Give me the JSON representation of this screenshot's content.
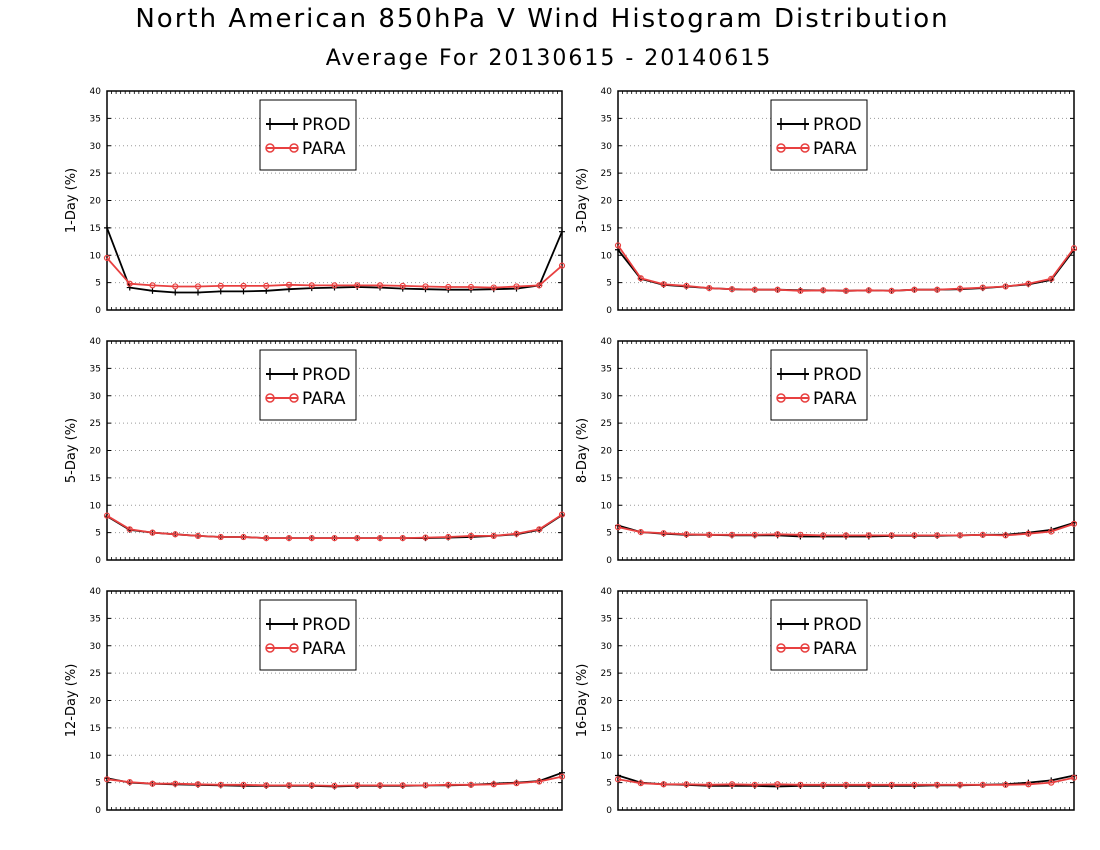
{
  "title": "North American 850hPa V Wind Histogram Distribution",
  "subtitle": "Average For 20130615 - 20140615",
  "colors": {
    "PROD": "#000000",
    "PARA": "#e84040"
  },
  "chart_data": [
    {
      "type": "line",
      "ylabel": "1-Day (%)",
      "ylim": [
        0,
        40
      ],
      "yticks": [
        0,
        5,
        10,
        15,
        20,
        25,
        30,
        35,
        40
      ],
      "grid": true,
      "legend": "top-center",
      "series": [
        {
          "name": "PROD",
          "values": [
            15,
            4.1,
            3.5,
            3.2,
            3.2,
            3.4,
            3.4,
            3.5,
            3.8,
            4.0,
            4.1,
            4.2,
            4.1,
            3.9,
            3.8,
            3.7,
            3.7,
            3.8,
            3.9,
            4.5,
            14.3
          ]
        },
        {
          "name": "PARA",
          "values": [
            9.5,
            4.8,
            4.5,
            4.3,
            4.3,
            4.4,
            4.4,
            4.4,
            4.6,
            4.5,
            4.5,
            4.5,
            4.5,
            4.4,
            4.3,
            4.2,
            4.2,
            4.1,
            4.3,
            4.5,
            8.1
          ]
        }
      ]
    },
    {
      "type": "line",
      "ylabel": "3-Day (%)",
      "ylim": [
        0,
        40
      ],
      "yticks": [
        0,
        5,
        10,
        15,
        20,
        25,
        30,
        35,
        40
      ],
      "grid": true,
      "legend": "top-center",
      "series": [
        {
          "name": "PROD",
          "values": [
            11.0,
            5.7,
            4.6,
            4.3,
            4.0,
            3.8,
            3.7,
            3.7,
            3.6,
            3.6,
            3.5,
            3.6,
            3.5,
            3.7,
            3.7,
            3.8,
            4.0,
            4.3,
            4.7,
            5.5,
            11.0
          ]
        },
        {
          "name": "PARA",
          "values": [
            11.8,
            5.8,
            4.7,
            4.4,
            4.0,
            3.8,
            3.7,
            3.7,
            3.5,
            3.6,
            3.5,
            3.6,
            3.5,
            3.7,
            3.7,
            3.9,
            4.1,
            4.3,
            4.8,
            5.7,
            11.3
          ]
        }
      ]
    },
    {
      "type": "line",
      "ylabel": "5-Day (%)",
      "ylim": [
        0,
        40
      ],
      "yticks": [
        0,
        5,
        10,
        15,
        20,
        25,
        30,
        35,
        40
      ],
      "grid": true,
      "legend": "top-center",
      "series": [
        {
          "name": "PROD",
          "values": [
            8.0,
            5.5,
            5.0,
            4.7,
            4.4,
            4.2,
            4.2,
            4.0,
            4.0,
            4.0,
            4.0,
            4.0,
            4.0,
            4.0,
            4.0,
            4.1,
            4.2,
            4.4,
            4.7,
            5.5,
            8.2
          ]
        },
        {
          "name": "PARA",
          "values": [
            8.1,
            5.6,
            5.0,
            4.7,
            4.4,
            4.2,
            4.2,
            4.0,
            4.0,
            4.0,
            4.0,
            4.0,
            4.0,
            4.0,
            4.1,
            4.2,
            4.4,
            4.4,
            4.8,
            5.6,
            8.3
          ]
        }
      ]
    },
    {
      "type": "line",
      "ylabel": "8-Day (%)",
      "ylim": [
        0,
        40
      ],
      "yticks": [
        0,
        5,
        10,
        15,
        20,
        25,
        30,
        35,
        40
      ],
      "grid": true,
      "legend": "top-center",
      "series": [
        {
          "name": "PROD",
          "values": [
            6.3,
            5.1,
            4.8,
            4.6,
            4.6,
            4.5,
            4.5,
            4.5,
            4.3,
            4.3,
            4.3,
            4.3,
            4.4,
            4.4,
            4.4,
            4.5,
            4.6,
            4.6,
            5.0,
            5.5,
            6.8
          ]
        },
        {
          "name": "PARA",
          "values": [
            6.0,
            5.1,
            4.9,
            4.7,
            4.6,
            4.6,
            4.6,
            4.7,
            4.6,
            4.5,
            4.5,
            4.5,
            4.5,
            4.5,
            4.5,
            4.5,
            4.6,
            4.5,
            4.8,
            5.2,
            6.6
          ]
        }
      ]
    },
    {
      "type": "line",
      "ylabel": "12-Day (%)",
      "ylim": [
        0,
        40
      ],
      "yticks": [
        0,
        5,
        10,
        15,
        20,
        25,
        30,
        35,
        40
      ],
      "grid": true,
      "legend": "top-center",
      "series": [
        {
          "name": "PROD",
          "values": [
            5.8,
            5.0,
            4.8,
            4.7,
            4.6,
            4.5,
            4.4,
            4.4,
            4.4,
            4.4,
            4.3,
            4.4,
            4.4,
            4.4,
            4.5,
            4.5,
            4.6,
            4.8,
            5.0,
            5.3,
            6.8
          ]
        },
        {
          "name": "PARA",
          "values": [
            5.6,
            5.1,
            4.8,
            4.8,
            4.7,
            4.6,
            4.6,
            4.5,
            4.5,
            4.5,
            4.4,
            4.5,
            4.5,
            4.5,
            4.5,
            4.6,
            4.6,
            4.7,
            4.9,
            5.2,
            6.1
          ]
        }
      ]
    },
    {
      "type": "line",
      "ylabel": "16-Day (%)",
      "ylim": [
        0,
        40
      ],
      "yticks": [
        0,
        5,
        10,
        15,
        20,
        25,
        30,
        35,
        40
      ],
      "grid": true,
      "legend": "top-center",
      "series": [
        {
          "name": "PROD",
          "values": [
            6.3,
            5.0,
            4.7,
            4.6,
            4.4,
            4.4,
            4.4,
            4.3,
            4.4,
            4.4,
            4.4,
            4.4,
            4.4,
            4.4,
            4.5,
            4.5,
            4.6,
            4.7,
            5.0,
            5.4,
            6.3
          ]
        },
        {
          "name": "PARA",
          "values": [
            5.6,
            4.9,
            4.7,
            4.7,
            4.6,
            4.7,
            4.6,
            4.7,
            4.6,
            4.6,
            4.6,
            4.6,
            4.6,
            4.6,
            4.6,
            4.6,
            4.6,
            4.6,
            4.7,
            5.0,
            5.9
          ]
        }
      ]
    }
  ]
}
